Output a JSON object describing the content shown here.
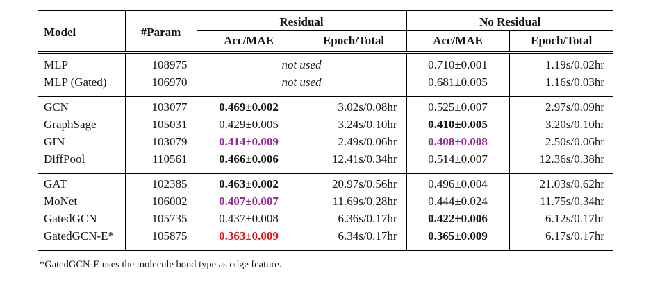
{
  "colors": {
    "text": "#141414",
    "rule": "#000000",
    "purple": "#8d2991",
    "red": "#e01212"
  },
  "table": {
    "header": {
      "model": "Model",
      "param": "#Param",
      "residual_group": "Residual",
      "no_residual_group": "No Residual",
      "res_acc": "Acc/MAE",
      "res_epoch": "Epoch/Total",
      "nores_acc": "Acc/MAE",
      "nores_epoch": "Epoch/Total"
    },
    "rows": [
      {
        "model": "MLP",
        "param": "108975",
        "res_merged": "not used",
        "nores_acc": "0.710±0.001",
        "nores_acc_style": "normal",
        "nores_epoch": "1.19s/0.02hr"
      },
      {
        "model": "MLP (Gated)",
        "param": "106970",
        "res_merged": "not used",
        "nores_acc": "0.681±0.005",
        "nores_acc_style": "normal",
        "nores_epoch": "1.16s/0.03hr"
      },
      {
        "model": "GCN",
        "param": "103077",
        "res_acc": "0.469±0.002",
        "res_acc_style": "bold",
        "res_epoch": "3.02s/0.08hr",
        "nores_acc": "0.525±0.007",
        "nores_acc_style": "normal",
        "nores_epoch": "2.97s/0.09hr"
      },
      {
        "model": "GraphSage",
        "param": "105031",
        "res_acc": "0.429±0.005",
        "res_acc_style": "normal",
        "res_epoch": "3.24s/0.10hr",
        "nores_acc": "0.410±0.005",
        "nores_acc_style": "bold",
        "nores_epoch": "3.20s/0.10hr"
      },
      {
        "model": "GIN",
        "param": "103079",
        "res_acc": "0.414±0.009",
        "res_acc_style": "purple",
        "res_epoch": "2.49s/0.06hr",
        "nores_acc": "0.408±0.008",
        "nores_acc_style": "purple",
        "nores_epoch": "2.50s/0.06hr"
      },
      {
        "model": "DiffPool",
        "param": "110561",
        "res_acc": "0.466±0.006",
        "res_acc_style": "bold",
        "res_epoch": "12.41s/0.34hr",
        "nores_acc": "0.514±0.007",
        "nores_acc_style": "normal",
        "nores_epoch": "12.36s/0.38hr"
      },
      {
        "model": "GAT",
        "param": "102385",
        "res_acc": "0.463±0.002",
        "res_acc_style": "bold",
        "res_epoch": "20.97s/0.56hr",
        "nores_acc": "0.496±0.004",
        "nores_acc_style": "normal",
        "nores_epoch": "21.03s/0.62hr"
      },
      {
        "model": "MoNet",
        "param": "106002",
        "res_acc": "0.407±0.007",
        "res_acc_style": "purple",
        "res_epoch": "11.69s/0.28hr",
        "nores_acc": "0.444±0.024",
        "nores_acc_style": "normal",
        "nores_epoch": "11.75s/0.34hr"
      },
      {
        "model": "GatedGCN",
        "param": "105735",
        "res_acc": "0.437±0.008",
        "res_acc_style": "normal",
        "res_epoch": "6.36s/0.17hr",
        "nores_acc": "0.422±0.006",
        "nores_acc_style": "bold",
        "nores_epoch": "6.12s/0.17hr"
      },
      {
        "model": "GatedGCN-E*",
        "param": "105875",
        "res_acc": "0.363±0.009",
        "res_acc_style": "red",
        "res_epoch": "6.34s/0.17hr",
        "nores_acc": "0.365±0.009",
        "nores_acc_style": "bold",
        "nores_epoch": "6.17s/0.17hr"
      }
    ]
  },
  "footnote": "*GatedGCN-E uses the molecule bond type as edge feature."
}
